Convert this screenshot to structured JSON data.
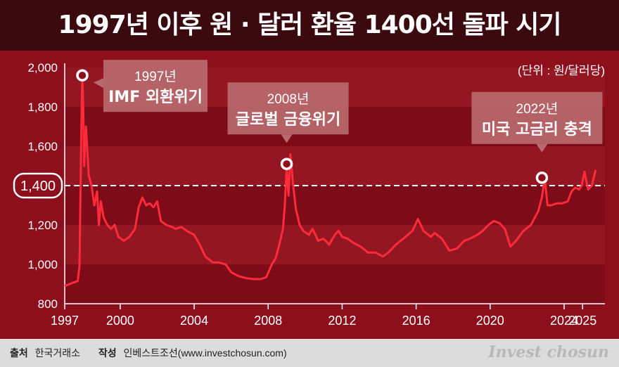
{
  "title": "1997년 이후 원 · 달러 환율 1400선 돌파 시기",
  "unit_label": "(단위 : 원/달러당)",
  "footer": {
    "source_label": "출처",
    "source_value": "한국거래소",
    "author_label": "작성",
    "author_value": "인베스트조선(www.investchosun.com)",
    "brand": "Invest chosun"
  },
  "colors": {
    "background": "#8e0f1c",
    "title_bar": "#3a0a0f",
    "line": "#ff2a3a",
    "reference_line": "#ffffff",
    "callout_box": "#b86a6e"
  },
  "chart_data": {
    "type": "line",
    "title": "1997년 이후 원 · 달러 환율 1400선 돌파 시기",
    "ylabel": "(단위 : 원/달러당)",
    "xlabel": "",
    "ylim": [
      800,
      2000
    ],
    "xlim": [
      1997.0,
      2025.75
    ],
    "yticks": [
      800,
      1000,
      1200,
      1400,
      1600,
      1800,
      2000
    ],
    "ytick_labels": [
      "800",
      "1,000",
      "1,200",
      "1,400",
      "1,600",
      "1,800",
      "2,000"
    ],
    "xticks": [
      1997,
      2000,
      2004,
      2008,
      2012,
      2016,
      2020,
      2024,
      2025
    ],
    "xtick_labels": [
      "1997",
      "2000",
      "2004",
      "2008",
      "2012",
      "2016",
      "2020",
      "2024",
      "2025"
    ],
    "reference_line": {
      "value": 1400,
      "label": "1,400"
    },
    "grid": "horizontal bands",
    "series": [
      {
        "x": [
          1997.0,
          1997.4,
          1997.7,
          1997.8,
          1997.9,
          1997.95,
          1998.0,
          1998.05,
          1998.15,
          1998.3,
          1998.45,
          1998.6,
          1998.75,
          1998.85,
          1998.95,
          1999.1,
          1999.3,
          1999.5,
          1999.7,
          1999.9,
          2000.2,
          2000.5,
          2000.8,
          2001.0,
          2001.2,
          2001.4,
          2001.6,
          2001.8,
          2002.0,
          2002.2,
          2002.5,
          2002.8,
          2003.0,
          2003.3,
          2003.6,
          2004.0,
          2004.3,
          2004.6,
          2005.0,
          2005.3,
          2005.7,
          2006.0,
          2006.4,
          2006.8,
          2007.2,
          2007.6,
          2007.9,
          2008.2,
          2008.4,
          2008.6,
          2008.8,
          2008.9,
          2009.0,
          2009.1,
          2009.2,
          2009.35,
          2009.5,
          2009.7,
          2009.9,
          2010.2,
          2010.4,
          2010.7,
          2011.0,
          2011.3,
          2011.6,
          2011.8,
          2012.0,
          2012.3,
          2012.6,
          2013.0,
          2013.4,
          2013.8,
          2014.2,
          2014.5,
          2014.9,
          2015.3,
          2015.8,
          2016.1,
          2016.4,
          2016.8,
          2017.0,
          2017.4,
          2017.8,
          2018.2,
          2018.6,
          2018.9,
          2019.3,
          2019.6,
          2019.9,
          2020.2,
          2020.5,
          2020.8,
          2021.1,
          2021.4,
          2021.8,
          2022.2,
          2022.6,
          2022.8,
          2022.95,
          2023.1,
          2023.3,
          2023.6,
          2023.9,
          2024.2,
          2024.4,
          2024.6,
          2024.8,
          2024.95,
          2025.1,
          2025.3,
          2025.5,
          2025.7
        ],
        "y": [
          890,
          905,
          915,
          990,
          1700,
          1960,
          1800,
          1500,
          1700,
          1450,
          1400,
          1300,
          1370,
          1200,
          1320,
          1240,
          1200,
          1180,
          1200,
          1140,
          1120,
          1140,
          1180,
          1290,
          1340,
          1300,
          1310,
          1290,
          1320,
          1220,
          1200,
          1190,
          1180,
          1190,
          1170,
          1150,
          1100,
          1040,
          1010,
          1010,
          1000,
          960,
          940,
          930,
          925,
          925,
          935,
          1000,
          1030,
          1100,
          1180,
          1300,
          1490,
          1350,
          1560,
          1400,
          1280,
          1200,
          1170,
          1150,
          1180,
          1120,
          1130,
          1100,
          1150,
          1170,
          1140,
          1130,
          1110,
          1090,
          1060,
          1060,
          1040,
          1060,
          1100,
          1130,
          1170,
          1230,
          1170,
          1140,
          1160,
          1130,
          1070,
          1080,
          1120,
          1130,
          1150,
          1170,
          1200,
          1220,
          1210,
          1180,
          1090,
          1120,
          1170,
          1200,
          1270,
          1340,
          1440,
          1300,
          1300,
          1310,
          1310,
          1320,
          1370,
          1390,
          1380,
          1400,
          1470,
          1380,
          1400,
          1480
        ]
      }
    ],
    "annotations": [
      {
        "x": 1997.95,
        "y": 1960,
        "year": "1997년",
        "label": "IMF 외환위기"
      },
      {
        "x": 2009.0,
        "y": 1510,
        "year": "2008년",
        "label": "글로벌 금융위기"
      },
      {
        "x": 2022.8,
        "y": 1440,
        "year": "2022년",
        "label": "미국 고금리 충격"
      }
    ]
  }
}
